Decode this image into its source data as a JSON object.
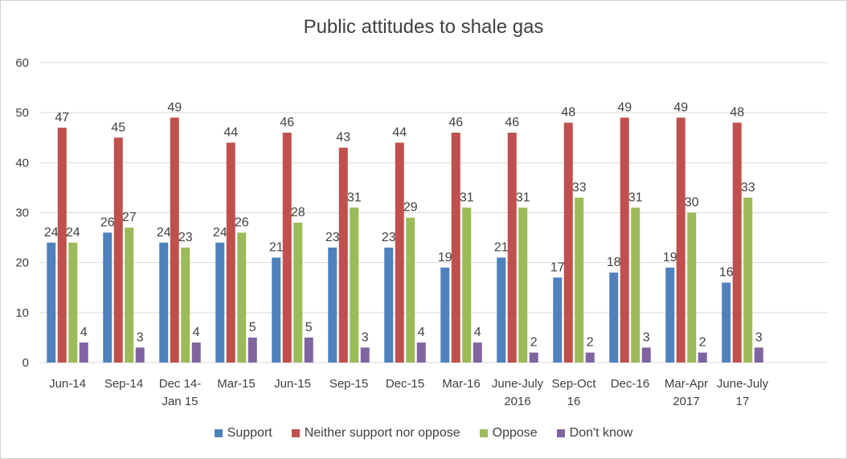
{
  "chart_data": {
    "type": "bar",
    "title": "Public attitudes to shale gas",
    "xlabel": "",
    "ylabel": "",
    "ylim": [
      0,
      60
    ],
    "yticks": [
      0,
      10,
      20,
      30,
      40,
      50,
      60
    ],
    "grid": true,
    "legend_position": "bottom",
    "categories": [
      [
        "Jun-14"
      ],
      [
        "Sep-14"
      ],
      [
        "Dec 14-",
        "Jan 15"
      ],
      [
        "Mar-15"
      ],
      [
        "Jun-15"
      ],
      [
        "Sep-15"
      ],
      [
        "Dec-15"
      ],
      [
        "Mar-16"
      ],
      [
        "June-July",
        "2016"
      ],
      [
        "Sep-Oct",
        "16"
      ],
      [
        "Dec-16"
      ],
      [
        "Mar-Apr",
        "2017"
      ],
      [
        "June-July",
        "17"
      ]
    ],
    "series": [
      {
        "name": "Support",
        "color": "#4f81bd",
        "values": [
          24,
          26,
          24,
          24,
          21,
          23,
          23,
          19,
          21,
          17,
          18,
          19,
          16
        ]
      },
      {
        "name": "Neither support nor oppose",
        "color": "#c0504d",
        "values": [
          47,
          45,
          49,
          44,
          46,
          43,
          44,
          46,
          46,
          48,
          49,
          49,
          48
        ]
      },
      {
        "name": "Oppose",
        "color": "#9bbb59",
        "values": [
          24,
          27,
          23,
          26,
          28,
          31,
          29,
          31,
          31,
          33,
          31,
          30,
          33
        ]
      },
      {
        "name": "Don't know",
        "color": "#8064a2",
        "values": [
          4,
          3,
          4,
          5,
          5,
          3,
          4,
          4,
          2,
          2,
          3,
          2,
          3
        ]
      }
    ]
  }
}
